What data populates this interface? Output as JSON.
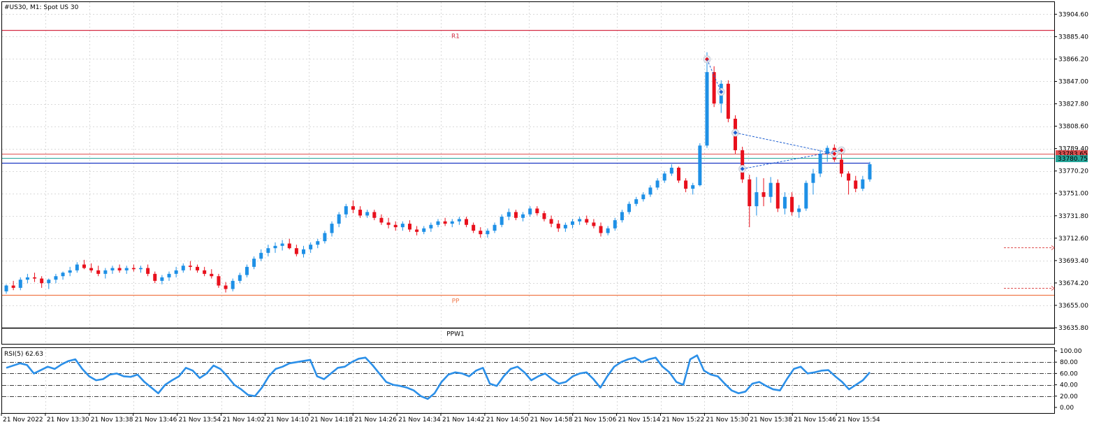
{
  "header": {
    "symbol_label": "#US30, M1:  Spot US 30"
  },
  "indicator": {
    "label": "RSI(5) 62.63",
    "value": 62.63
  },
  "price_axis": {
    "ticks": [
      "33904.60",
      "33885.40",
      "33866.20",
      "33847.00",
      "33827.80",
      "33808.60",
      "33789.40",
      "33770.20",
      "33751.00",
      "33731.80",
      "33712.60",
      "33693.40",
      "33674.20",
      "33655.00",
      "33635.80"
    ]
  },
  "rsi_axis": {
    "ticks": [
      "100.00",
      "80.00",
      "60.00",
      "40.00",
      "20.00",
      "0.00"
    ]
  },
  "time_axis": {
    "ticks": [
      "21 Nov 2022",
      "21 Nov 13:30",
      "21 Nov 13:38",
      "21 Nov 13:46",
      "21 Nov 13:54",
      "21 Nov 14:02",
      "21 Nov 14:10",
      "21 Nov 14:18",
      "21 Nov 14:26",
      "21 Nov 14:34",
      "21 Nov 14:42",
      "21 Nov 14:50",
      "21 Nov 14:58",
      "21 Nov 15:06",
      "21 Nov 15:14",
      "21 Nov 15:22",
      "21 Nov 15:30",
      "21 Nov 15:38",
      "21 Nov 15:46",
      "21 Nov 15:54"
    ]
  },
  "levels": [
    {
      "label": "R1",
      "price": 33891,
      "color": "#d42f45"
    },
    {
      "label": "PP",
      "price": 33664,
      "color": "#f07a4b"
    },
    {
      "label": "PPW1",
      "price": 33636,
      "color": "#000000"
    }
  ],
  "price_labels": [
    {
      "text": "33783.65",
      "price": 33783.65,
      "color": "#e05050"
    },
    {
      "text": "33780.75",
      "price": 33780.75,
      "color": "#26a69a"
    }
  ],
  "colors": {
    "bull": "#1e90e6",
    "bear": "#e8101c",
    "rsi": "#2b8fe8",
    "grid": "#d9d9d9"
  },
  "chart_data": {
    "type": "candlestick",
    "title": "#US30, M1:  Spot US 30",
    "price_range": [
      33622,
      33915
    ],
    "rsi_range": [
      0,
      100
    ],
    "rsi_levels": [
      80,
      60,
      40,
      20
    ],
    "candles": [
      [
        33667,
        33673,
        33665,
        33672
      ],
      [
        33672,
        33676,
        33668,
        33670
      ],
      [
        33670,
        33679,
        33668,
        33677
      ],
      [
        33677,
        33682,
        33674,
        33679
      ],
      [
        33679,
        33683,
        33675,
        33678
      ],
      [
        33678,
        33680,
        33670,
        33674
      ],
      [
        33674,
        33678,
        33669,
        33677
      ],
      [
        33677,
        33682,
        33674,
        33680
      ],
      [
        33680,
        33684,
        33677,
        33683
      ],
      [
        33683,
        33688,
        33680,
        33685
      ],
      [
        33685,
        33692,
        33683,
        33690
      ],
      [
        33690,
        33694,
        33686,
        33687
      ],
      [
        33687,
        33691,
        33683,
        33685
      ],
      [
        33685,
        33689,
        33680,
        33682
      ],
      [
        33682,
        33687,
        33678,
        33685
      ],
      [
        33685,
        33689,
        33682,
        33687
      ],
      [
        33687,
        33690,
        33683,
        33685
      ],
      [
        33685,
        33689,
        33682,
        33687
      ],
      [
        33687,
        33690,
        33684,
        33686
      ],
      [
        33686,
        33689,
        33683,
        33687
      ],
      [
        33687,
        33690,
        33680,
        33682
      ],
      [
        33682,
        33684,
        33674,
        33676
      ],
      [
        33676,
        33681,
        33673,
        33679
      ],
      [
        33679,
        33684,
        33676,
        33682
      ],
      [
        33682,
        33688,
        33679,
        33685
      ],
      [
        33685,
        33691,
        33683,
        33689
      ],
      [
        33689,
        33693,
        33685,
        33688
      ],
      [
        33688,
        33690,
        33683,
        33685
      ],
      [
        33685,
        33688,
        33680,
        33682
      ],
      [
        33682,
        33686,
        33678,
        33680
      ],
      [
        33680,
        33682,
        33670,
        33672
      ],
      [
        33672,
        33675,
        33666,
        33669
      ],
      [
        33669,
        33678,
        33667,
        33676
      ],
      [
        33676,
        33683,
        33674,
        33681
      ],
      [
        33681,
        33690,
        33679,
        33688
      ],
      [
        33688,
        33697,
        33686,
        33695
      ],
      [
        33695,
        33703,
        33693,
        33700
      ],
      [
        33700,
        33707,
        33697,
        33704
      ],
      [
        33704,
        33709,
        33700,
        33706
      ],
      [
        33706,
        33711,
        33702,
        33708
      ],
      [
        33708,
        33712,
        33703,
        33704
      ],
      [
        33704,
        33707,
        33697,
        33699
      ],
      [
        33699,
        33706,
        33696,
        33703
      ],
      [
        33703,
        33709,
        33700,
        33707
      ],
      [
        33707,
        33712,
        33704,
        33710
      ],
      [
        33710,
        33719,
        33708,
        33717
      ],
      [
        33717,
        33727,
        33714,
        33725
      ],
      [
        33725,
        33735,
        33722,
        33733
      ],
      [
        33733,
        33742,
        33730,
        33740
      ],
      [
        33740,
        33745,
        33734,
        33737
      ],
      [
        33737,
        33740,
        33730,
        33732
      ],
      [
        33732,
        33737,
        33730,
        33735
      ],
      [
        33735,
        33737,
        33728,
        33730
      ],
      [
        33730,
        33733,
        33724,
        33726
      ],
      [
        33726,
        33730,
        33721,
        33724
      ],
      [
        33724,
        33727,
        33719,
        33722
      ],
      [
        33722,
        33727,
        33719,
        33725
      ],
      [
        33725,
        33728,
        33718,
        33720
      ],
      [
        33720,
        33723,
        33715,
        33718
      ],
      [
        33718,
        33723,
        33716,
        33721
      ],
      [
        33721,
        33726,
        33718,
        33724
      ],
      [
        33724,
        33729,
        33722,
        33727
      ],
      [
        33727,
        33730,
        33723,
        33725
      ],
      [
        33725,
        33729,
        33722,
        33727
      ],
      [
        33727,
        33731,
        33724,
        33729
      ],
      [
        33729,
        33731,
        33722,
        33724
      ],
      [
        33724,
        33726,
        33717,
        33719
      ],
      [
        33719,
        33722,
        33713,
        33716
      ],
      [
        33716,
        33721,
        33713,
        33719
      ],
      [
        33719,
        33726,
        33717,
        33724
      ],
      [
        33724,
        33733,
        33722,
        33731
      ],
      [
        33731,
        33738,
        33728,
        33735
      ],
      [
        33735,
        33737,
        33728,
        33730
      ],
      [
        33730,
        33735,
        33727,
        33733
      ],
      [
        33733,
        33740,
        33731,
        33738
      ],
      [
        33738,
        33740,
        33732,
        33734
      ],
      [
        33734,
        33736,
        33727,
        33729
      ],
      [
        33729,
        33732,
        33722,
        33725
      ],
      [
        33725,
        33728,
        33718,
        33721
      ],
      [
        33721,
        33726,
        33718,
        33724
      ],
      [
        33724,
        33729,
        33721,
        33727
      ],
      [
        33727,
        33731,
        33724,
        33729
      ],
      [
        33729,
        33732,
        33724,
        33726
      ],
      [
        33726,
        33729,
        33721,
        33723
      ],
      [
        33723,
        33726,
        33714,
        33717
      ],
      [
        33717,
        33723,
        33715,
        33721
      ],
      [
        33721,
        33730,
        33719,
        33728
      ],
      [
        33728,
        33737,
        33726,
        33735
      ],
      [
        33735,
        33744,
        33733,
        33742
      ],
      [
        33742,
        33748,
        33740,
        33746
      ],
      [
        33746,
        33752,
        33744,
        33750
      ],
      [
        33750,
        33758,
        33748,
        33756
      ],
      [
        33756,
        33764,
        33754,
        33762
      ],
      [
        33762,
        33770,
        33760,
        33768
      ],
      [
        33768,
        33776,
        33766,
        33773
      ],
      [
        33773,
        33774,
        33760,
        33762
      ],
      [
        33762,
        33764,
        33752,
        33755
      ],
      [
        33755,
        33760,
        33750,
        33758
      ],
      [
        33758,
        33794,
        33757,
        33792
      ],
      [
        33792,
        33872,
        33790,
        33855
      ],
      [
        33855,
        33860,
        33825,
        33828
      ],
      [
        33828,
        33848,
        33820,
        33845
      ],
      [
        33845,
        33848,
        33812,
        33815
      ],
      [
        33815,
        33818,
        33785,
        33788
      ],
      [
        33788,
        33791,
        33760,
        33763
      ],
      [
        33763,
        33767,
        33722,
        33740
      ],
      [
        33740,
        33765,
        33732,
        33752
      ],
      [
        33752,
        33764,
        33740,
        33748
      ],
      [
        33748,
        33765,
        33743,
        33760
      ],
      [
        33760,
        33763,
        33735,
        33738
      ],
      [
        33738,
        33752,
        33733,
        33748
      ],
      [
        33748,
        33752,
        33732,
        33735
      ],
      [
        33735,
        33741,
        33730,
        33738
      ],
      [
        33738,
        33762,
        33736,
        33760
      ],
      [
        33760,
        33772,
        33750,
        33768
      ],
      [
        33768,
        33788,
        33765,
        33785
      ],
      [
        33785,
        33792,
        33778,
        33790
      ],
      [
        33790,
        33793,
        33778,
        33780
      ],
      [
        33780,
        33786,
        33765,
        33768
      ],
      [
        33768,
        33770,
        33750,
        33762
      ],
      [
        33762,
        33766,
        33752,
        33755
      ],
      [
        33755,
        33766,
        33753,
        33763
      ],
      [
        33763,
        33778,
        33761,
        33776
      ]
    ],
    "rsi": [
      70,
      74,
      78,
      75,
      60,
      66,
      72,
      68,
      76,
      82,
      85,
      68,
      55,
      48,
      50,
      58,
      60,
      55,
      54,
      58,
      45,
      35,
      25,
      40,
      48,
      55,
      70,
      65,
      52,
      60,
      74,
      68,
      55,
      40,
      32,
      22,
      20,
      35,
      55,
      68,
      72,
      78,
      80,
      82,
      84,
      55,
      50,
      60,
      70,
      72,
      80,
      86,
      88,
      75,
      60,
      45,
      40,
      38,
      35,
      30,
      20,
      15,
      25,
      45,
      58,
      62,
      60,
      55,
      65,
      70,
      42,
      38,
      55,
      68,
      72,
      62,
      48,
      55,
      60,
      50,
      42,
      45,
      55,
      60,
      62,
      50,
      35,
      55,
      72,
      80,
      85,
      88,
      80,
      85,
      88,
      72,
      62,
      45,
      40,
      85,
      92,
      65,
      58,
      55,
      42,
      30,
      25,
      28,
      42,
      45,
      38,
      32,
      30,
      50,
      68,
      72,
      60,
      62,
      65,
      66,
      55,
      45,
      32,
      40,
      48,
      62
    ]
  }
}
